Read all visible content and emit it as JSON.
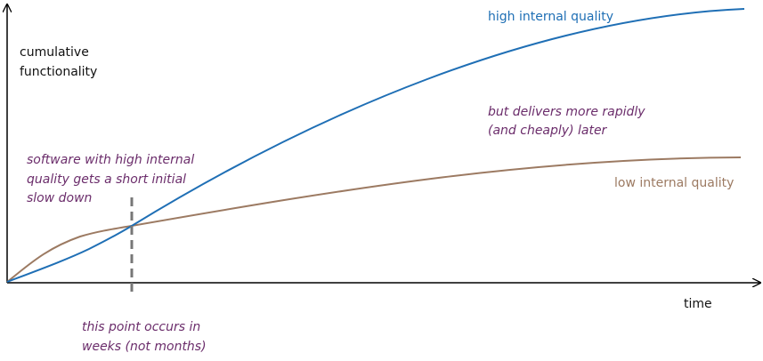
{
  "axes": {
    "y_label": [
      "cumulative",
      "functionality"
    ],
    "x_label": "time"
  },
  "curves": {
    "high": "high internal quality",
    "low": "low internal quality"
  },
  "annotations": {
    "slow_down": [
      "software with high internal",
      "quality gets a short initial",
      "slow down"
    ],
    "later": [
      "but delivers more rapidly",
      "(and cheaply) later"
    ],
    "crossover": [
      "this point occurs in",
      "weeks (not months)"
    ]
  }
}
